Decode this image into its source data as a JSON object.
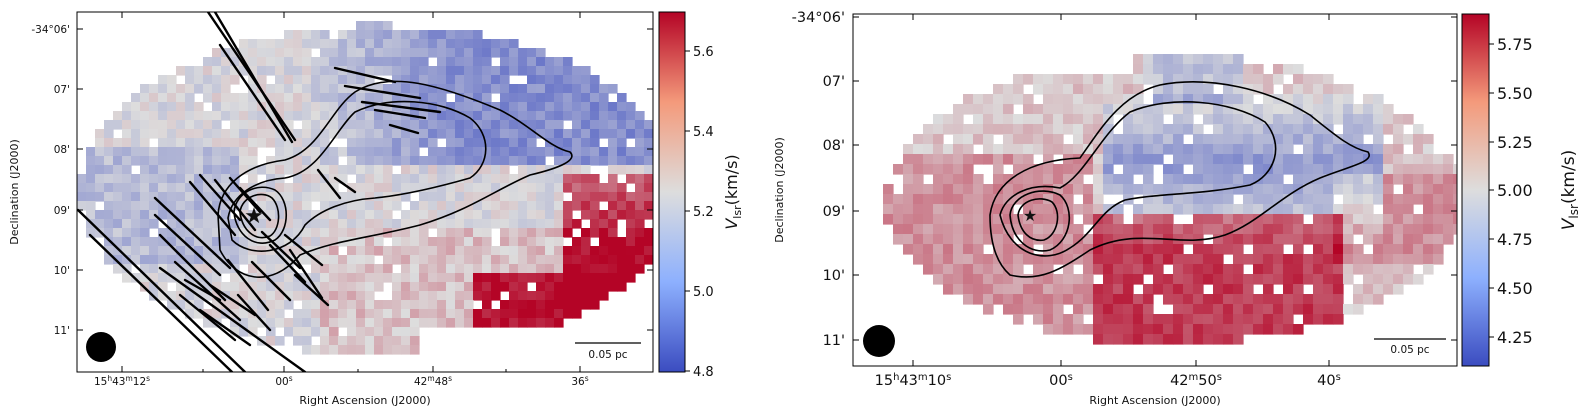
{
  "chart_data": [
    {
      "type": "heatmap",
      "title": "",
      "xlabel": "Right Ascension (J2000)",
      "ylabel": "Declination (J2000)",
      "x_ticks": [
        "15h43m12s",
        "00s",
        "42m48s",
        "36s"
      ],
      "y_ticks": [
        "-34°06'",
        "07'",
        "08'",
        "09'",
        "10'",
        "11'"
      ],
      "colorbar": {
        "label": "V_lsr (km/s)",
        "label_main": "V",
        "label_sub": "lsr",
        "label_unit": "(km/s)",
        "colormap": "coolwarm",
        "range": [
          4.8,
          5.7
        ],
        "ticks": [
          "5.6",
          "5.4",
          "5.2",
          "5.0",
          "4.8"
        ]
      },
      "scalebar_label": "0.05 pc",
      "overlays": [
        "intensity contours",
        "polarization segments",
        "star marker",
        "beam"
      ],
      "colors": {
        "low": "#3b4cc0",
        "mid": "#dddddd",
        "high": "#b40426"
      }
    },
    {
      "type": "heatmap",
      "title": "",
      "xlabel": "Right Ascension (J2000)",
      "ylabel": "Declination (J2000)",
      "x_ticks": [
        "15h43m10s",
        "00s",
        "42m50s",
        "40s"
      ],
      "y_ticks": [
        "-34°06'",
        "07'",
        "08'",
        "09'",
        "10'",
        "11'"
      ],
      "colorbar": {
        "label": "V_lsr (km/s)",
        "label_main": "V",
        "label_sub": "lsr",
        "label_unit": "(km/s)",
        "colormap": "coolwarm",
        "range": [
          4.1,
          5.9
        ],
        "ticks": [
          "5.75",
          "5.50",
          "5.25",
          "5.00",
          "4.75",
          "4.50",
          "4.25"
        ]
      },
      "scalebar_label": "0.05 pc",
      "overlays": [
        "intensity contours",
        "star marker",
        "beam"
      ],
      "colors": {
        "low": "#3b4cc0",
        "mid": "#dddddd",
        "high": "#b40426"
      }
    }
  ]
}
